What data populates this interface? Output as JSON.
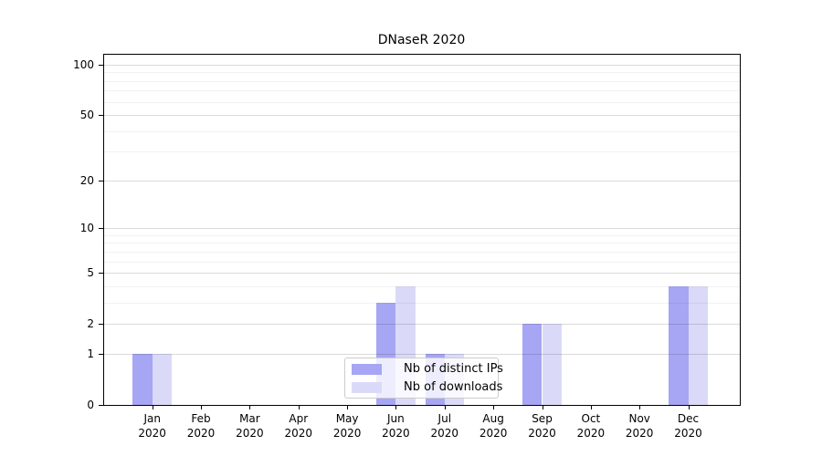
{
  "title": "DNaseR 2020",
  "chart_data": {
    "type": "bar",
    "title": "DNaseR 2020",
    "year": "2020",
    "categories": [
      "Jan 2020",
      "Feb 2020",
      "Mar 2020",
      "Apr 2020",
      "May 2020",
      "Jun 2020",
      "Jul 2020",
      "Aug 2020",
      "Sep 2020",
      "Oct 2020",
      "Nov 2020",
      "Dec 2020"
    ],
    "month_labels": [
      "Jan",
      "Feb",
      "Mar",
      "Apr",
      "May",
      "Jun",
      "Jul",
      "Aug",
      "Sep",
      "Oct",
      "Nov",
      "Dec"
    ],
    "series": [
      {
        "name": "Nb of distinct IPs",
        "color": "#a6a6f4",
        "values": [
          1,
          0,
          0,
          0,
          0,
          3,
          1,
          0,
          2,
          0,
          0,
          4
        ]
      },
      {
        "name": "Nb of downloads",
        "color": "#dadaf8",
        "values": [
          1,
          0,
          0,
          0,
          0,
          4,
          1,
          0,
          2,
          0,
          0,
          4
        ]
      }
    ],
    "yscale": "log1p",
    "y_major_ticks": [
      0,
      1,
      2,
      5,
      10,
      20,
      50,
      100
    ],
    "y_minor_gridlines": [
      3,
      4,
      6,
      7,
      8,
      9,
      30,
      40,
      60,
      70,
      80,
      90
    ],
    "ylim": [
      0,
      116
    ],
    "xlabel": "",
    "ylabel": "",
    "grid": true,
    "legend_position": "lower center"
  },
  "colors": {
    "bar_distinct_ips": "#a6a6f4",
    "bar_downloads": "#dadaf8",
    "spine": "#000000",
    "grid_major": "#dbdbdb",
    "grid_minor": "#efefef",
    "legend_border": "#cccccc"
  }
}
